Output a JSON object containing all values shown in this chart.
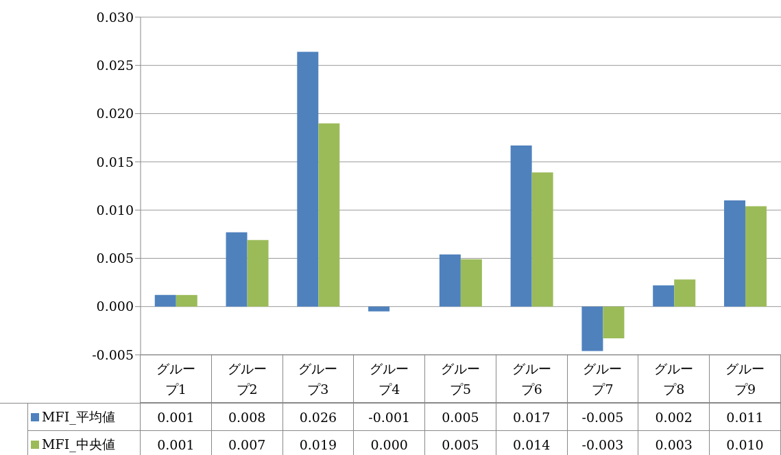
{
  "chart_data": {
    "type": "bar",
    "categories": [
      "グループ1",
      "グループ2",
      "グループ3",
      "グループ4",
      "グループ5",
      "グループ6",
      "グループ7",
      "グループ8",
      "グループ9"
    ],
    "series": [
      {
        "name": "MFI_平均値",
        "color": "#4f81bd",
        "values": [
          0.0012,
          0.0077,
          0.0264,
          -0.0005,
          0.0054,
          0.0167,
          -0.0046,
          0.0022,
          0.011
        ],
        "value_labels": [
          "0.001",
          "0.008",
          "0.026",
          "-0.001",
          "0.005",
          "0.017",
          "-0.005",
          "0.002",
          "0.011"
        ]
      },
      {
        "name": "MFI_中央値",
        "color": "#9bbb59",
        "values": [
          0.0012,
          0.0069,
          0.019,
          0.0,
          0.0049,
          0.0139,
          -0.0033,
          0.0028,
          0.0104
        ],
        "value_labels": [
          "0.001",
          "0.007",
          "0.019",
          "0.000",
          "0.005",
          "0.014",
          "-0.003",
          "0.003",
          "0.010"
        ]
      }
    ],
    "ylim": [
      -0.005,
      0.03
    ],
    "yticks": [
      {
        "value": -0.005,
        "label": "-0.005"
      },
      {
        "value": 0,
        "label": "0.000"
      },
      {
        "value": 0.005,
        "label": "0.005"
      },
      {
        "value": 0.01,
        "label": "0.010"
      },
      {
        "value": 0.015,
        "label": "0.015"
      },
      {
        "value": 0.02,
        "label": "0.020"
      },
      {
        "value": 0.025,
        "label": "0.025"
      },
      {
        "value": 0.03,
        "label": "0.030"
      }
    ],
    "grid": "y",
    "legend": "bottom"
  }
}
